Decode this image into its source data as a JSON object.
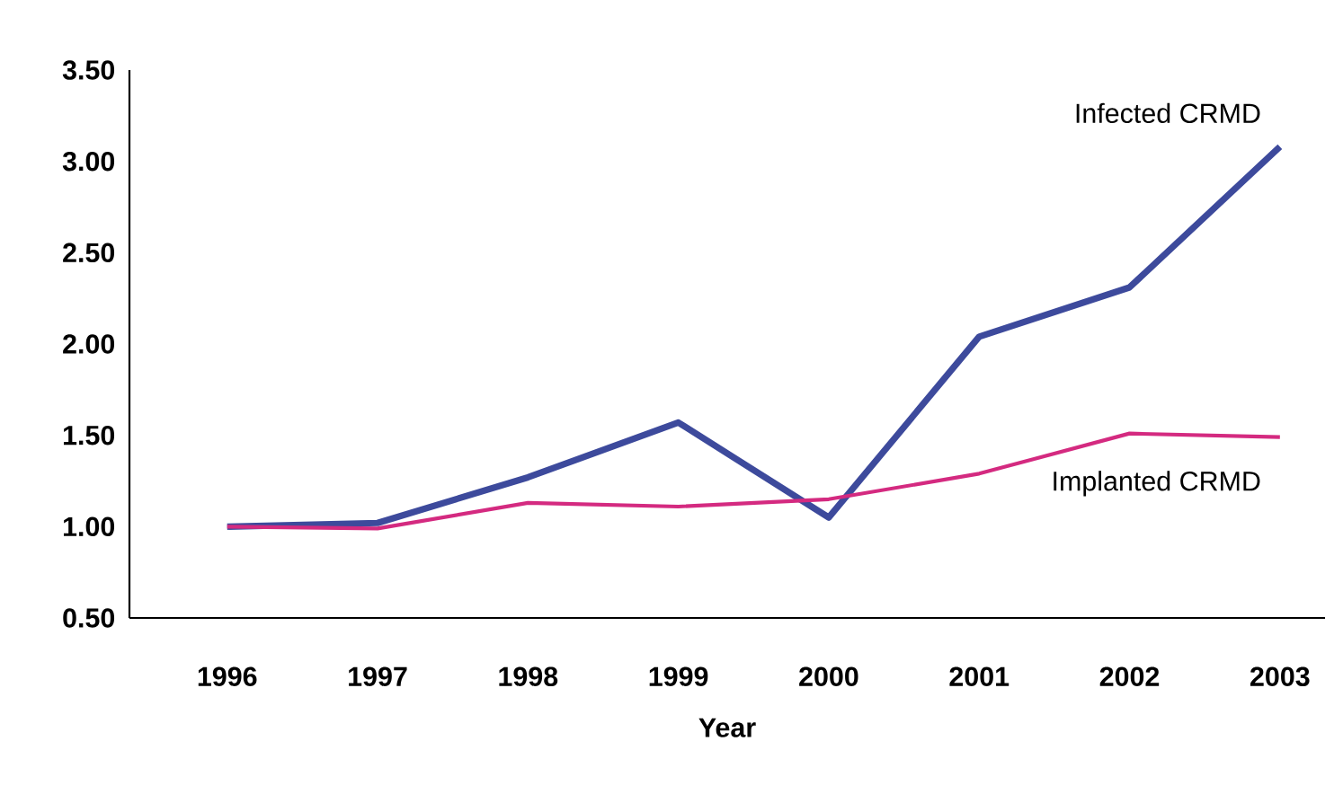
{
  "chart_data": {
    "type": "line",
    "xlabel": "Year",
    "categories": [
      "1996",
      "1997",
      "1998",
      "1999",
      "2000",
      "2001",
      "2002",
      "2003"
    ],
    "series": [
      {
        "name": "Infected CRMD",
        "color": "#3d4a9c",
        "values": [
          1.0,
          1.02,
          1.27,
          1.57,
          1.05,
          2.04,
          2.31,
          3.08
        ]
      },
      {
        "name": "Implanted CRMD",
        "color": "#d42a80",
        "values": [
          1.0,
          0.99,
          1.13,
          1.11,
          1.15,
          1.29,
          1.51,
          1.49
        ]
      }
    ],
    "ylim": [
      0.5,
      3.5
    ],
    "yticks": [
      {
        "value": 0.5,
        "label": "0.50"
      },
      {
        "value": 1.0,
        "label": "1.00"
      },
      {
        "value": 1.5,
        "label": "1.50"
      },
      {
        "value": 2.0,
        "label": "2.00"
      },
      {
        "value": 2.5,
        "label": "2.50"
      },
      {
        "value": 3.0,
        "label": "3.00"
      },
      {
        "value": 3.5,
        "label": "3.50"
      }
    ],
    "grid": false,
    "legend": false,
    "marker": "none",
    "line_style": "solid"
  }
}
